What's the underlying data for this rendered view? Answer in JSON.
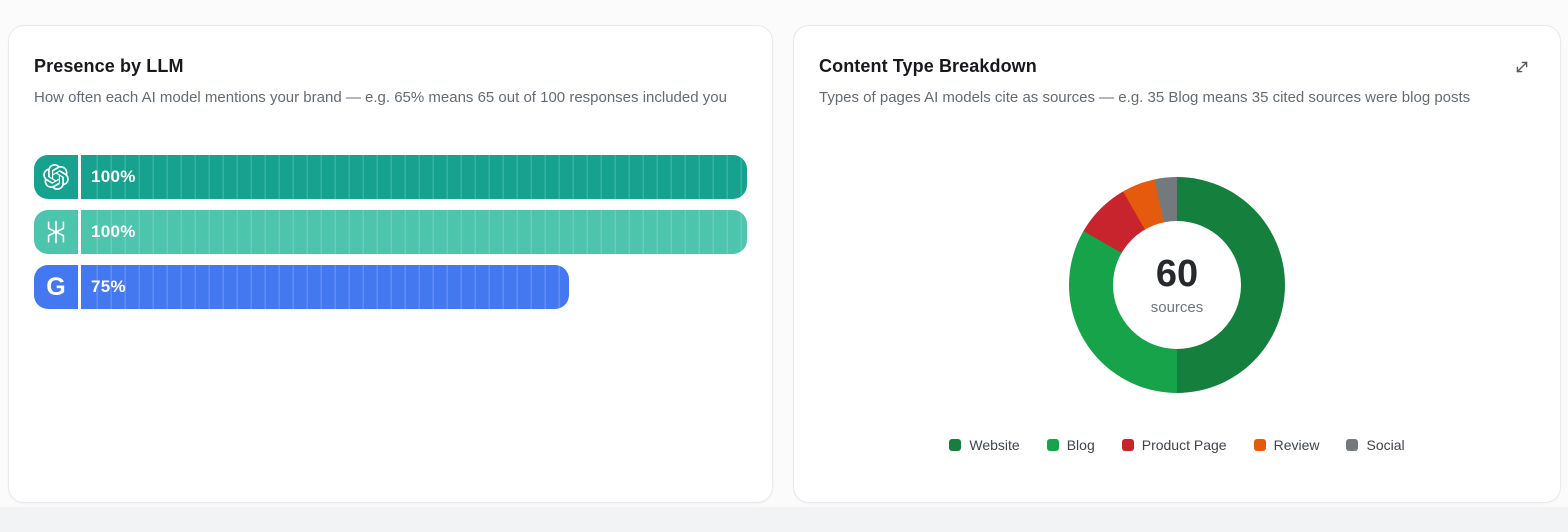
{
  "left_card": {
    "title": "Presence by LLM",
    "description": "How often each AI model mentions your brand — e.g. 65% means 65 out of 100 responses included you"
  },
  "right_card": {
    "title": "Content Type Breakdown",
    "description": "Types of pages AI models cite as sources — e.g. 35 Blog means 35 cited sources were blog posts"
  },
  "icons": {
    "expand": "diagonal-expand-arrows",
    "bar_icons": [
      "openai-logo",
      "perplexity-logo",
      "google-g-logo"
    ]
  },
  "chart_data": [
    {
      "type": "bar",
      "orientation": "horizontal",
      "title": "Presence by LLM",
      "categories": [
        "OpenAI",
        "Perplexity",
        "Google"
      ],
      "values": [
        100,
        100,
        75
      ],
      "unit": "%",
      "value_labels": [
        "100%",
        "100%",
        "75%"
      ],
      "xlim": [
        0,
        100
      ],
      "bar_colors": [
        "#16A28F",
        "#4DC4AC",
        "#4478F0"
      ],
      "segmented": true,
      "legend_position": "none"
    },
    {
      "type": "pie",
      "donut": true,
      "title": "Content Type Breakdown",
      "labels": [
        "Website",
        "Blog",
        "Product Page",
        "Review",
        "Social"
      ],
      "values": [
        30,
        20,
        5,
        3,
        2
      ],
      "total": 60,
      "center_text": "60",
      "center_subtext": "sources",
      "colors": [
        "#15803D",
        "#16A34A",
        "#C7242E",
        "#E65A0E",
        "#74797E"
      ],
      "start_angle_deg": 0,
      "legend_position": "bottom"
    }
  ]
}
